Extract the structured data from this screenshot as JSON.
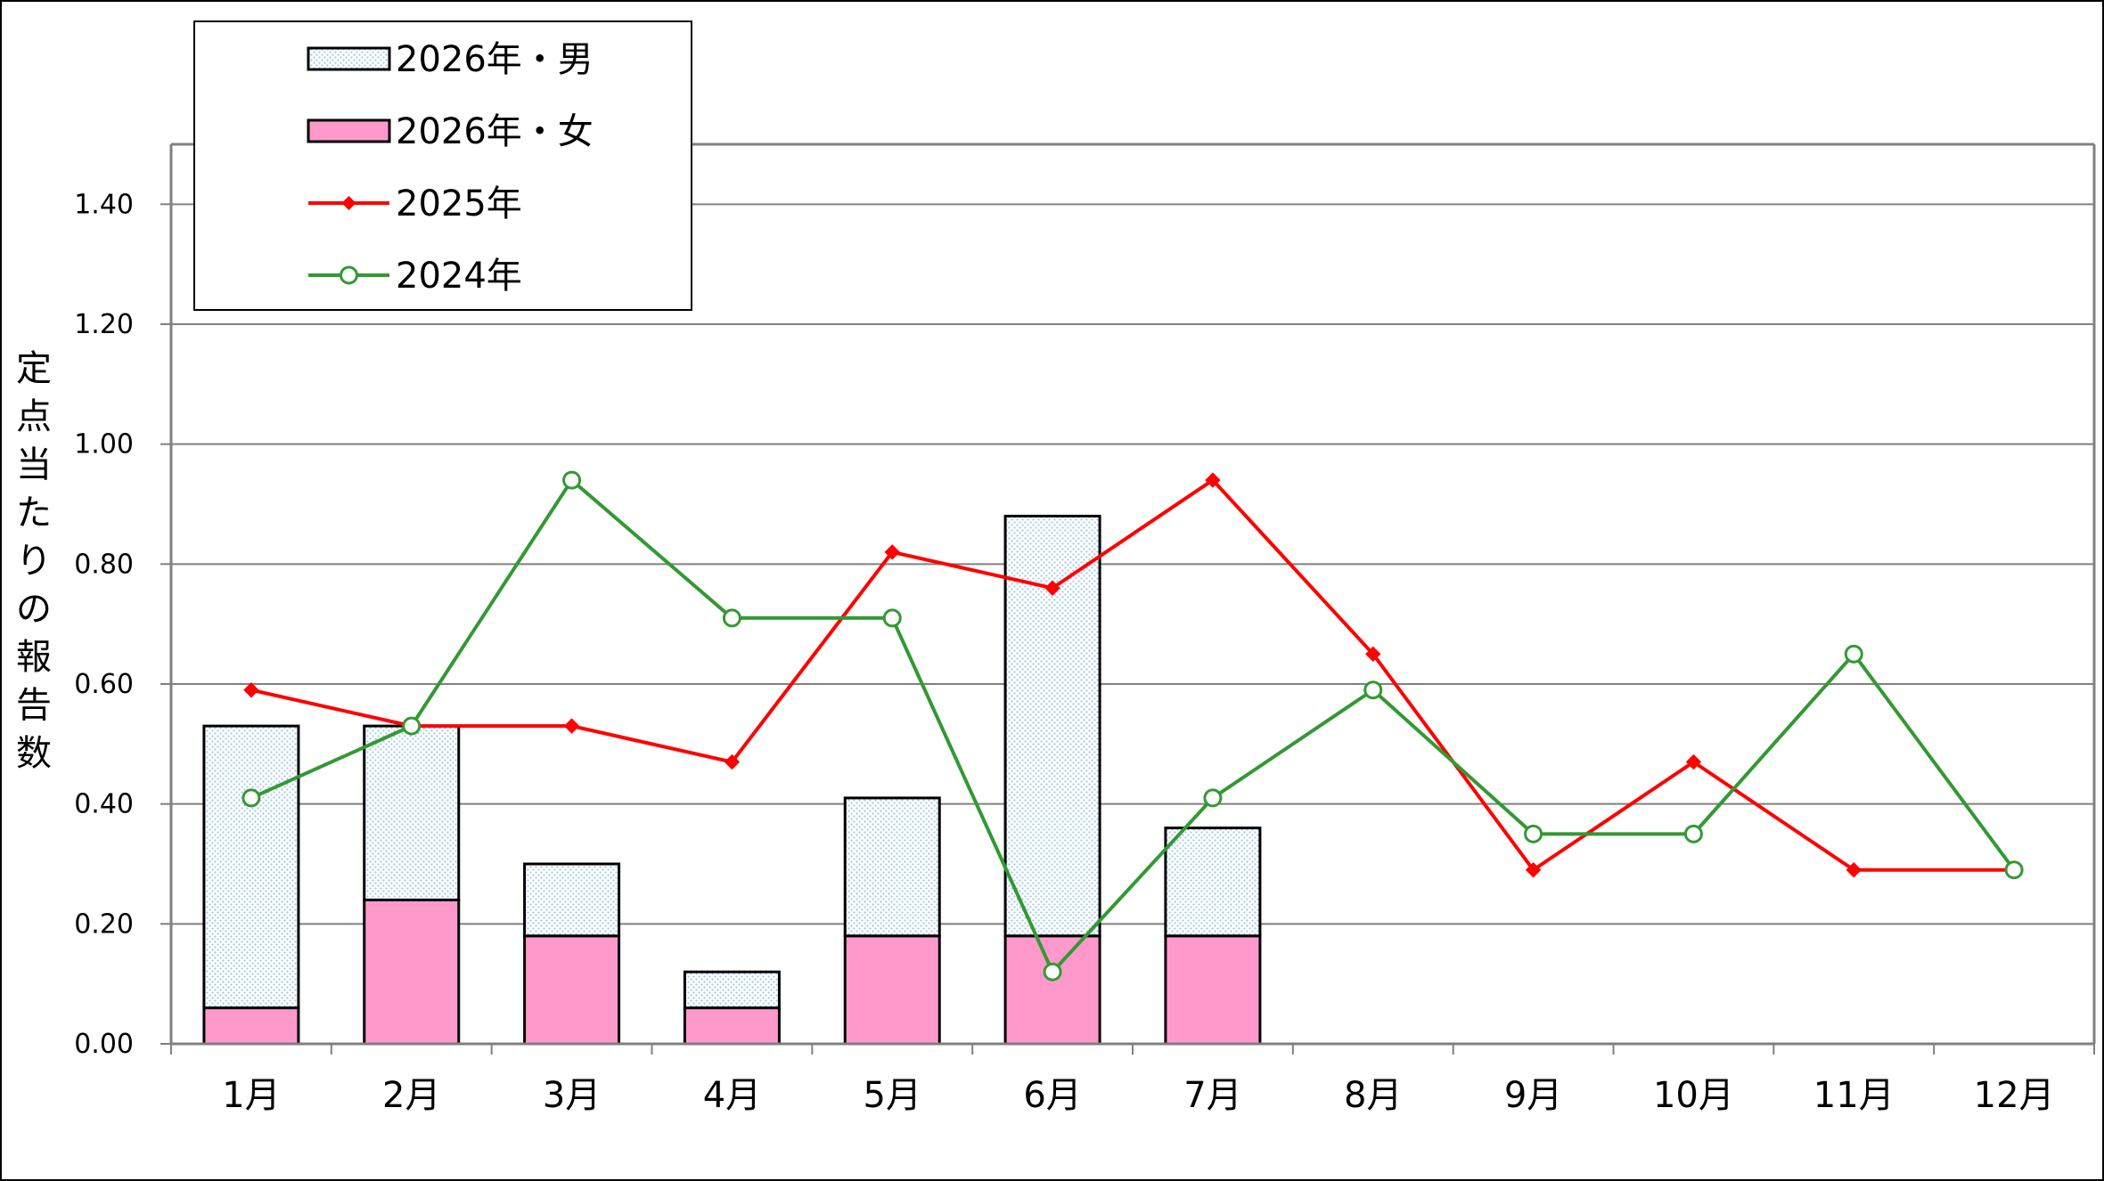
{
  "chart_data": {
    "type": "bar",
    "categories": [
      "1月",
      "2月",
      "3月",
      "4月",
      "5月",
      "6月",
      "7月",
      "8月",
      "9月",
      "10月",
      "11月",
      "12月"
    ],
    "ylabel": "定点当たりの報告数",
    "ylim": [
      0,
      1.5
    ],
    "yticks": [
      "0.00",
      "0.20",
      "0.40",
      "0.60",
      "0.80",
      "1.00",
      "1.20",
      "1.40"
    ],
    "grid": true,
    "legend_position": "top-left",
    "bar_stack": [
      {
        "name": "2026年・女",
        "values": [
          0.06,
          0.24,
          0.18,
          0.06,
          0.18,
          0.18,
          0.18,
          null,
          null,
          null,
          null,
          null
        ],
        "color": "#ff99cc"
      },
      {
        "name": "2026年・男",
        "values": [
          0.47,
          0.29,
          0.12,
          0.06,
          0.23,
          0.7,
          0.18,
          null,
          null,
          null,
          null,
          null
        ],
        "color": "#d8eaf8"
      }
    ],
    "series": [
      {
        "name": "2025年",
        "type": "line",
        "marker": "diamond",
        "color": "#ff0000",
        "values": [
          0.59,
          0.53,
          0.53,
          0.47,
          0.82,
          0.76,
          0.94,
          0.65,
          0.29,
          0.47,
          0.29,
          0.29
        ]
      },
      {
        "name": "2024年",
        "type": "line",
        "marker": "circle",
        "color": "#339933",
        "values": [
          0.41,
          0.53,
          0.94,
          0.71,
          0.71,
          0.12,
          0.41,
          0.59,
          0.35,
          0.35,
          0.65,
          0.29
        ]
      }
    ]
  }
}
